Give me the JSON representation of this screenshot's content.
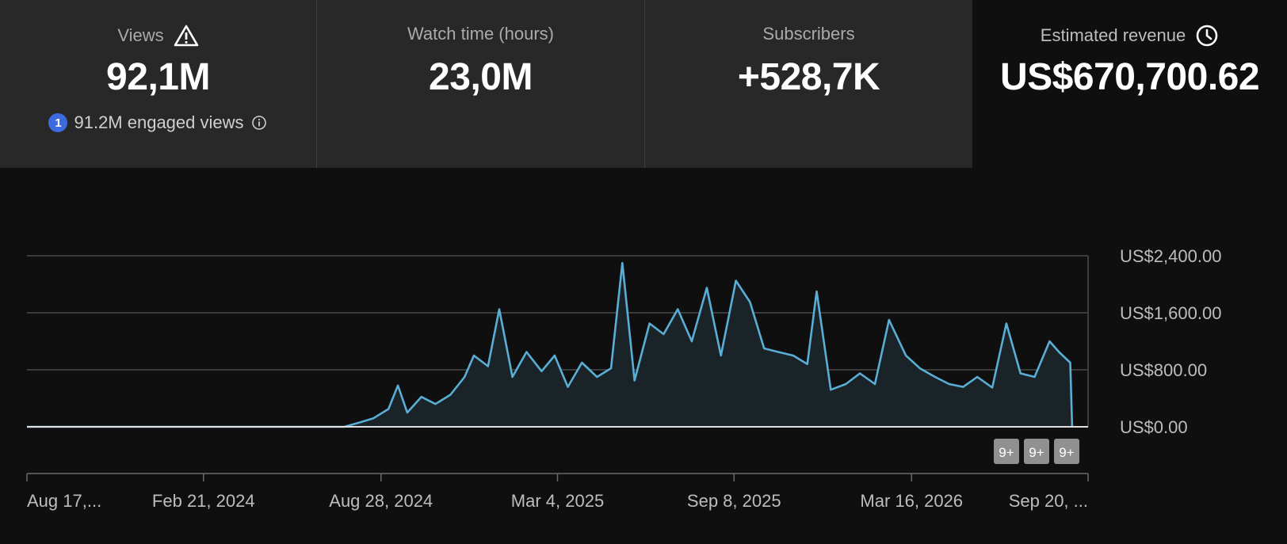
{
  "metrics": {
    "views": {
      "title": "Views",
      "value": "92,1M",
      "engaged_badge": "1",
      "engaged_text": "91.2M engaged views",
      "warning_icon": "warning-triangle-icon",
      "info_icon": "info-icon"
    },
    "watch_time": {
      "title": "Watch time (hours)",
      "value": "23,0M"
    },
    "subscribers": {
      "title": "Subscribers",
      "value": "+528,7K"
    },
    "revenue": {
      "title": "Estimated revenue",
      "value": "US$670,700.62",
      "clock_icon": "clock-icon"
    }
  },
  "chart_data": {
    "type": "area",
    "series_color": "#5aaed6",
    "y_tick_labels": [
      "US$2,400.00",
      "US$1,600.00",
      "US$800.00",
      "US$0.00"
    ],
    "y_ticks": [
      2400,
      1600,
      800,
      0
    ],
    "ylim": [
      0,
      2400
    ],
    "x_tick_labels": [
      "Aug 17,...",
      "Feb 21, 2024",
      "Aug 28, 2024",
      "Mar 4, 2025",
      "Sep 8, 2025",
      "Mar 16, 2026",
      "Sep 20, ..."
    ],
    "x_ticks": [
      "2023-08-17",
      "2024-02-21",
      "2024-08-28",
      "2025-03-04",
      "2025-09-08",
      "2026-03-16",
      "2026-09-20"
    ],
    "grid": true,
    "points": [
      [
        "2023-08-17",
        0
      ],
      [
        "2024-06-01",
        0
      ],
      [
        "2024-06-29",
        0
      ],
      [
        "2024-07-20",
        0
      ],
      [
        "2024-08-05",
        60
      ],
      [
        "2024-08-20",
        120
      ],
      [
        "2024-09-05",
        250
      ],
      [
        "2024-09-15",
        580
      ],
      [
        "2024-09-25",
        200
      ],
      [
        "2024-10-10",
        420
      ],
      [
        "2024-10-25",
        320
      ],
      [
        "2024-11-10",
        450
      ],
      [
        "2024-11-25",
        700
      ],
      [
        "2024-12-05",
        1000
      ],
      [
        "2024-12-20",
        850
      ],
      [
        "2025-01-01",
        1650
      ],
      [
        "2025-01-15",
        700
      ],
      [
        "2025-01-30",
        1050
      ],
      [
        "2025-02-15",
        780
      ],
      [
        "2025-03-01",
        1000
      ],
      [
        "2025-03-15",
        560
      ],
      [
        "2025-03-30",
        900
      ],
      [
        "2025-04-15",
        700
      ],
      [
        "2025-04-30",
        820
      ],
      [
        "2025-05-12",
        2300
      ],
      [
        "2025-05-25",
        650
      ],
      [
        "2025-06-10",
        1450
      ],
      [
        "2025-06-25",
        1300
      ],
      [
        "2025-07-10",
        1650
      ],
      [
        "2025-07-25",
        1200
      ],
      [
        "2025-08-10",
        1950
      ],
      [
        "2025-08-25",
        1000
      ],
      [
        "2025-09-10",
        2050
      ],
      [
        "2025-09-25",
        1750
      ],
      [
        "2025-10-10",
        1100
      ],
      [
        "2025-10-25",
        1050
      ],
      [
        "2025-11-10",
        1000
      ],
      [
        "2025-11-25",
        880
      ],
      [
        "2025-12-05",
        1900
      ],
      [
        "2025-12-20",
        520
      ],
      [
        "2026-01-05",
        600
      ],
      [
        "2026-01-20",
        750
      ],
      [
        "2026-02-05",
        600
      ],
      [
        "2026-02-20",
        1500
      ],
      [
        "2026-03-10",
        1000
      ],
      [
        "2026-03-25",
        820
      ],
      [
        "2026-04-10",
        700
      ],
      [
        "2026-04-25",
        600
      ],
      [
        "2026-05-10",
        560
      ],
      [
        "2026-05-25",
        700
      ],
      [
        "2026-06-10",
        550
      ],
      [
        "2026-06-25",
        1450
      ],
      [
        "2026-07-10",
        750
      ],
      [
        "2026-07-25",
        700
      ],
      [
        "2026-08-10",
        1200
      ],
      [
        "2026-08-20",
        1050
      ],
      [
        "2026-09-01",
        900
      ],
      [
        "2026-09-03",
        0
      ]
    ],
    "markers": [
      "9+",
      "9+",
      "9+"
    ]
  }
}
